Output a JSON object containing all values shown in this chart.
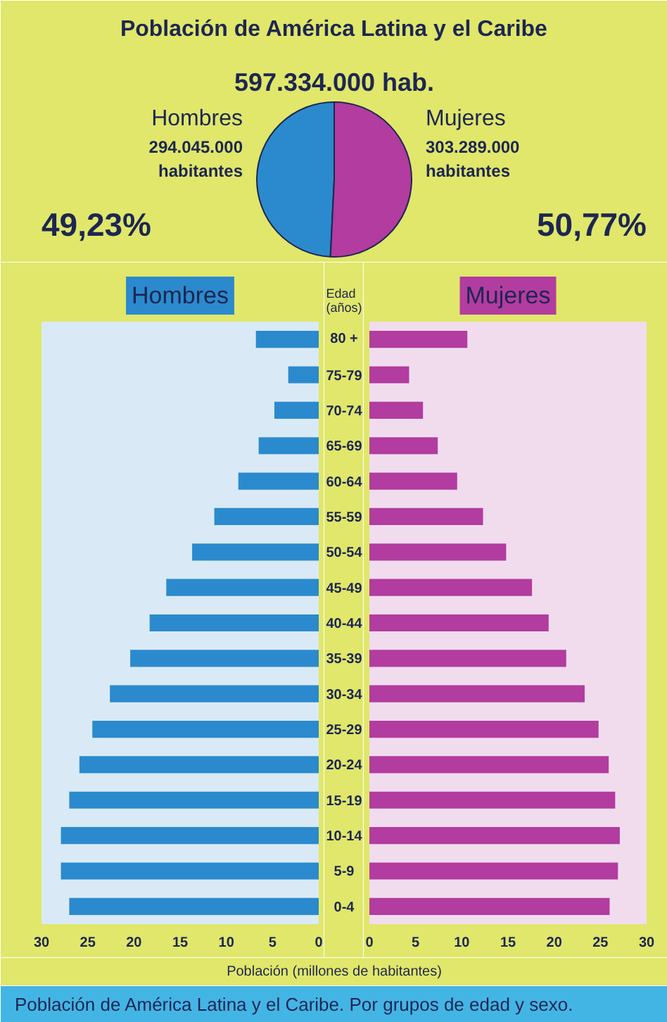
{
  "chart_data": [
    {
      "type": "pie",
      "title": "Población de América Latina y el Caribe",
      "subtitle": "597.334.000 hab.",
      "categories": [
        "Hombres",
        "Mujeres"
      ],
      "values": [
        294045000,
        303289000
      ],
      "colors": [
        "#2b8acd",
        "#b23c9f"
      ],
      "value_labels": [
        "294.045.000\nhabitantes",
        "303.289.000\nhabitantes"
      ],
      "annotations": [
        "49,23%",
        "50,77%"
      ]
    },
    {
      "type": "bar",
      "orientation": "horizontal",
      "title": "Hombres",
      "color": "#2b8acd",
      "tick_labels": "x",
      "categories": [
        "80 +",
        "75-79",
        "70-74",
        "65-69",
        "60-64",
        "55-59",
        "50-54",
        "45-49",
        "40-44",
        "35-39",
        "30-34",
        "25-29",
        "20-24",
        "15-19",
        "10-14",
        "5-9",
        "0-4"
      ],
      "values": [
        6.8,
        3.3,
        4.8,
        6.5,
        8.7,
        11.3,
        13.7,
        16.5,
        18.3,
        20.4,
        22.6,
        24.5,
        25.9,
        27.0,
        27.9,
        27.9,
        27.0
      ],
      "xlim": [
        30,
        0
      ],
      "xticks": [
        30,
        25,
        20,
        15,
        10,
        5,
        0
      ]
    },
    {
      "type": "bar",
      "orientation": "horizontal",
      "title": "Mujeres",
      "color": "#b23c9f",
      "ylabel": "Edad (años)",
      "xlabel": "Población (millones de habitantes)",
      "categories": [
        "80 +",
        "75-79",
        "70-74",
        "65-69",
        "60-64",
        "55-59",
        "50-54",
        "45-49",
        "40-44",
        "35-39",
        "30-34",
        "25-29",
        "20-24",
        "15-19",
        "10-14",
        "5-9",
        "0-4"
      ],
      "values": [
        10.6,
        4.3,
        5.8,
        7.4,
        9.5,
        12.3,
        14.8,
        17.6,
        19.4,
        21.3,
        23.3,
        24.8,
        25.9,
        26.6,
        27.1,
        26.9,
        26.0
      ],
      "xlim": [
        0,
        30
      ],
      "xticks": [
        0,
        5,
        10,
        15,
        20,
        25,
        30
      ],
      "annotations": [
        "Población de América Latina y el Caribe. Por grupos de edad y sexo."
      ]
    }
  ]
}
